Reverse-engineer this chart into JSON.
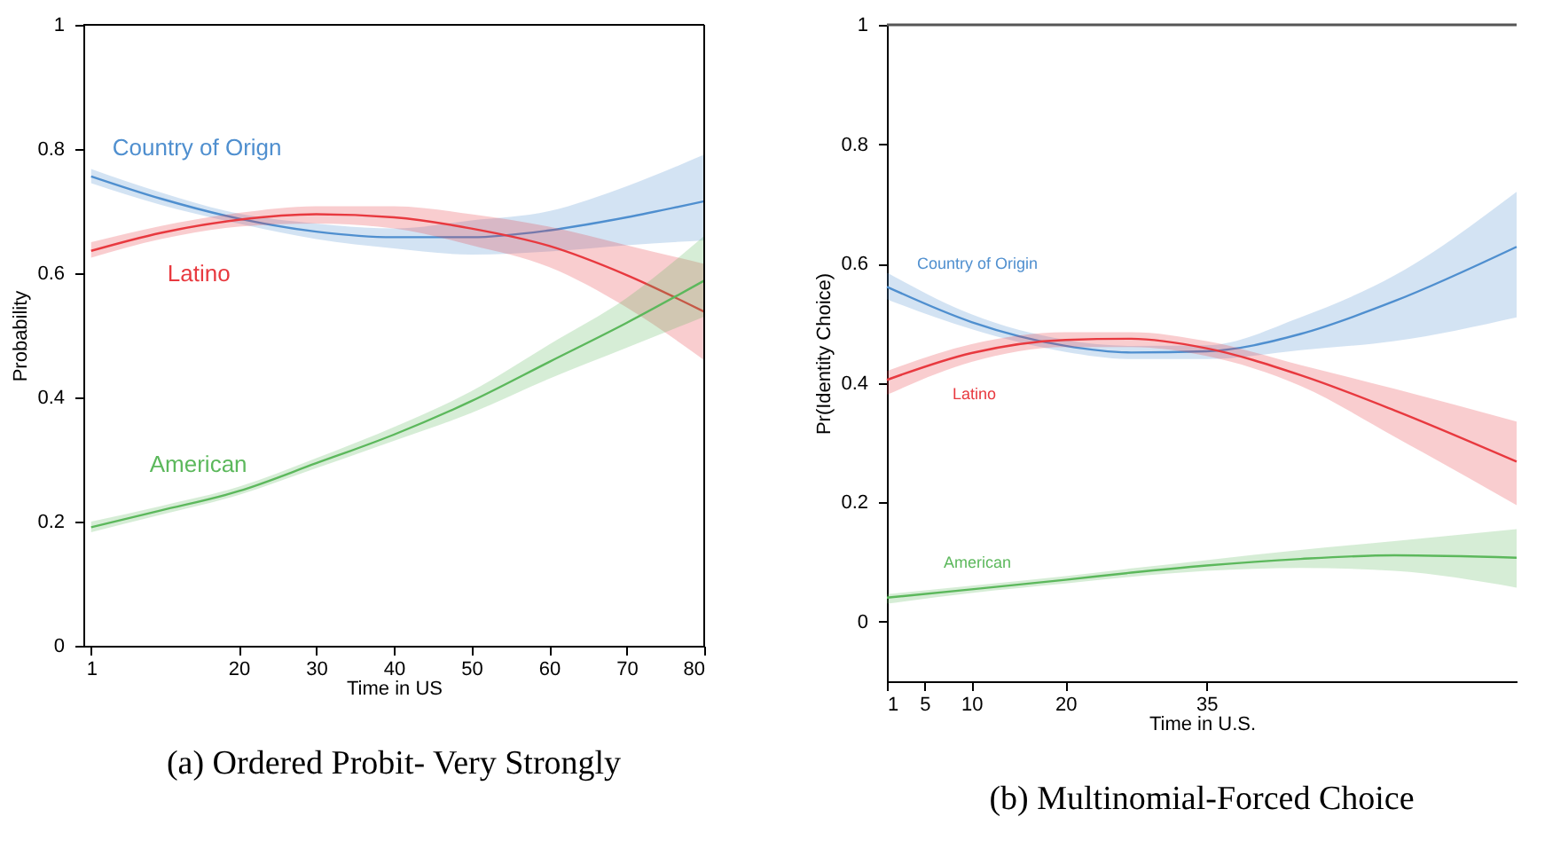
{
  "chart_data": [
    {
      "type": "line",
      "title": "(a) Ordered Probit- Very Strongly",
      "xlabel": "Time in US",
      "ylabel": "Probability",
      "xlim": [
        0,
        80
      ],
      "xticks": [
        1,
        20,
        30,
        40,
        50,
        60,
        70,
        80
      ],
      "ylim": [
        0,
        1
      ],
      "yticks": [
        0,
        0.2,
        0.4,
        0.6,
        0.8,
        1
      ],
      "grid": false,
      "legend": false,
      "x": [
        1,
        10,
        20,
        30,
        40,
        50,
        60,
        70,
        80
      ],
      "series": [
        {
          "name": "Country of Orign",
          "color": "#4f8fcf",
          "values": [
            0.756,
            0.72,
            0.688,
            0.667,
            0.658,
            0.658,
            0.669,
            0.69,
            0.716
          ],
          "lower": [
            0.745,
            0.71,
            0.68,
            0.655,
            0.64,
            0.63,
            0.635,
            0.645,
            0.653
          ],
          "upper": [
            0.768,
            0.73,
            0.696,
            0.68,
            0.672,
            0.685,
            0.7,
            0.74,
            0.791
          ]
        },
        {
          "name": "Latino",
          "color": "#e8393f",
          "values": [
            0.636,
            0.665,
            0.686,
            0.695,
            0.69,
            0.672,
            0.644,
            0.597,
            0.538
          ],
          "lower": [
            0.625,
            0.655,
            0.675,
            0.68,
            0.672,
            0.645,
            0.61,
            0.545,
            0.46
          ],
          "upper": [
            0.65,
            0.676,
            0.697,
            0.708,
            0.708,
            0.695,
            0.675,
            0.645,
            0.615
          ]
        },
        {
          "name": "American",
          "color": "#5cb85c",
          "values": [
            0.191,
            0.218,
            0.249,
            0.294,
            0.34,
            0.394,
            0.457,
            0.52,
            0.588
          ],
          "lower": [
            0.183,
            0.211,
            0.243,
            0.286,
            0.33,
            0.375,
            0.43,
            0.48,
            0.53
          ],
          "upper": [
            0.2,
            0.225,
            0.256,
            0.302,
            0.352,
            0.41,
            0.485,
            0.56,
            0.66
          ]
        }
      ]
    },
    {
      "type": "line",
      "title": "(b) Multinomial-Forced Choice",
      "xlabel": "Time in U.S.",
      "ylabel": "Pr(Identity Choice)",
      "xlim": [
        1,
        68
      ],
      "xticks": [
        1,
        5,
        10,
        20,
        35
      ],
      "ylim": [
        -0.1,
        1
      ],
      "yticks": [
        0,
        0.2,
        0.4,
        0.6,
        0.8,
        1
      ],
      "grid": false,
      "legend": false,
      "x": [
        1,
        10,
        20,
        27,
        35,
        45,
        55,
        68
      ],
      "series": [
        {
          "name": "Country of Origin",
          "color": "#4f8fcf",
          "values": [
            0.561,
            0.502,
            0.462,
            0.451,
            0.453,
            0.482,
            0.537,
            0.628
          ],
          "lower": [
            0.54,
            0.49,
            0.452,
            0.44,
            0.44,
            0.455,
            0.47,
            0.51
          ],
          "upper": [
            0.585,
            0.515,
            0.472,
            0.462,
            0.463,
            0.51,
            0.58,
            0.72
          ]
        },
        {
          "name": "Latino",
          "color": "#e8393f",
          "values": [
            0.405,
            0.45,
            0.472,
            0.474,
            0.458,
            0.413,
            0.354,
            0.268
          ],
          "lower": [
            0.38,
            0.435,
            0.46,
            0.46,
            0.445,
            0.395,
            0.31,
            0.195
          ],
          "upper": [
            0.42,
            0.465,
            0.485,
            0.485,
            0.47,
            0.43,
            0.39,
            0.335
          ]
        },
        {
          "name": "American",
          "color": "#5cb85c",
          "values": [
            0.04,
            0.054,
            0.07,
            0.082,
            0.094,
            0.105,
            0.111,
            0.107
          ],
          "lower": [
            0.03,
            0.048,
            0.064,
            0.075,
            0.085,
            0.09,
            0.085,
            0.057
          ],
          "upper": [
            0.046,
            0.06,
            0.076,
            0.089,
            0.103,
            0.12,
            0.135,
            0.155
          ]
        }
      ]
    }
  ]
}
